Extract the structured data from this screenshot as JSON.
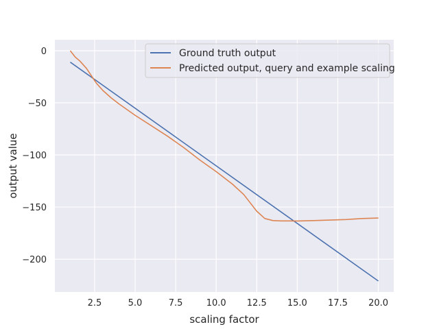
{
  "chart_data": {
    "type": "line",
    "title": "",
    "xlabel": "scaling factor",
    "ylabel": "output value",
    "xlim": [
      0.05,
      20.95
    ],
    "ylim": [
      -231.5,
      10.5
    ],
    "xticks": [
      2.5,
      5.0,
      7.5,
      10.0,
      12.5,
      15.0,
      17.5,
      20.0
    ],
    "xtick_labels": [
      "2.5",
      "5.0",
      "7.5",
      "10.0",
      "12.5",
      "15.0",
      "17.5",
      "20.0"
    ],
    "yticks": [
      0,
      -50,
      -100,
      -150,
      -200
    ],
    "ytick_labels": [
      "0",
      "−50",
      "−100",
      "−150",
      "−200"
    ],
    "grid": true,
    "legend_position": "top-right",
    "series": [
      {
        "name": "Ground truth output",
        "color": "#4c72b0",
        "x": [
          1.0,
          20.0
        ],
        "y": [
          -11.0,
          -221.0
        ]
      },
      {
        "name": "Predicted output, query and example scaling",
        "color": "#dd8452",
        "x": [
          1.0,
          1.3,
          1.6,
          2.0,
          2.3,
          2.6,
          3.0,
          3.5,
          4.0,
          5.0,
          6.0,
          7.0,
          8.0,
          9.0,
          10.0,
          11.0,
          11.7,
          12.0,
          12.5,
          13.0,
          13.5,
          14.0,
          14.5,
          15.0,
          16.0,
          17.0,
          18.0,
          19.0,
          20.0
        ],
        "y": [
          0.0,
          -6.0,
          -10.0,
          -17.0,
          -24.0,
          -31.0,
          -38.0,
          -45.0,
          -51.0,
          -62.0,
          -72.0,
          -82.0,
          -93.0,
          -105.0,
          -116.0,
          -128.0,
          -138.0,
          -144.0,
          -154.0,
          -161.0,
          -163.0,
          -163.3,
          -163.3,
          -163.4,
          -163.0,
          -162.5,
          -162.0,
          -161.0,
          -160.5
        ]
      }
    ]
  }
}
